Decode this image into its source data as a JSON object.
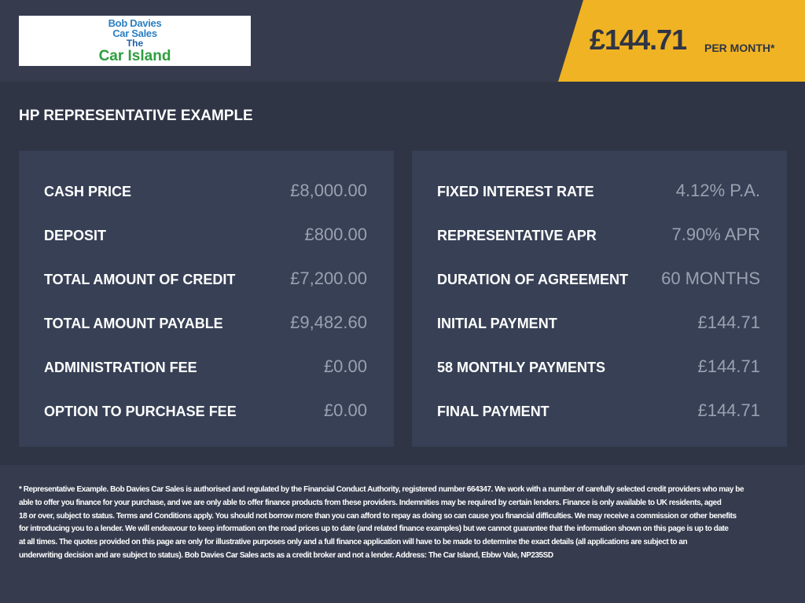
{
  "logo": {
    "line1": "Bob Davies",
    "line2": "Car Sales",
    "line3": "The",
    "line4": "Car Island"
  },
  "price_tag": {
    "amount": "£144.71",
    "suffix": "PER MONTH*"
  },
  "section_title": "HP REPRESENTATIVE EXAMPLE",
  "left_panel": {
    "rows": [
      [
        "CASH PRICE",
        "£8,000.00"
      ],
      [
        "DEPOSIT",
        "£800.00"
      ],
      [
        "TOTAL AMOUNT OF CREDIT",
        "£7,200.00"
      ],
      [
        "TOTAL AMOUNT PAYABLE",
        "£9,482.60"
      ],
      [
        "ADMINISTRATION FEE",
        "£0.00"
      ],
      [
        "OPTION TO PURCHASE FEE",
        "£0.00"
      ]
    ]
  },
  "right_panel": {
    "rows": [
      [
        "FIXED INTEREST RATE",
        "4.12% P.A."
      ],
      [
        "REPRESENTATIVE APR",
        "7.90% APR"
      ],
      [
        "DURATION OF AGREEMENT",
        "60 MONTHS"
      ],
      [
        "INITIAL PAYMENT",
        "£144.71"
      ],
      [
        "58 MONTHLY PAYMENTS",
        "£144.71"
      ],
      [
        "FINAL PAYMENT",
        "£144.71"
      ]
    ]
  },
  "disclaimer": {
    "lines": [
      "* Representative Example. Bob Davies Car Sales is authorised and regulated by the Financial Conduct Authority, registered number 664347. We work with a number of carefully selected credit providers who may be",
      "able to offer you finance for your purchase, and we are only able to offer finance products from these providers. Indemnities may be required by certain lenders. Finance is only available to UK residents, aged",
      "18 or over, subject to status. Terms and Conditions apply. You should not borrow more than you can afford to repay as doing so can cause you financial difficulties. We may receive a commission or other benefits",
      "for introducing you to a lender. We will endeavour to keep information on the road prices up to date (and related finance examples) but we cannot guarantee that the information shown on this page is up to date",
      "at all times. The quotes provided on this page are only for illustrative purposes only and a full finance application will have to be made to determine the exact details (all applications are subject to an",
      "underwriting decision and are subject to status). Bob Davies Car Sales acts as a credit broker and not a lender. Address: The Car Island, Ebbw Vale, NP235SD"
    ]
  }
}
